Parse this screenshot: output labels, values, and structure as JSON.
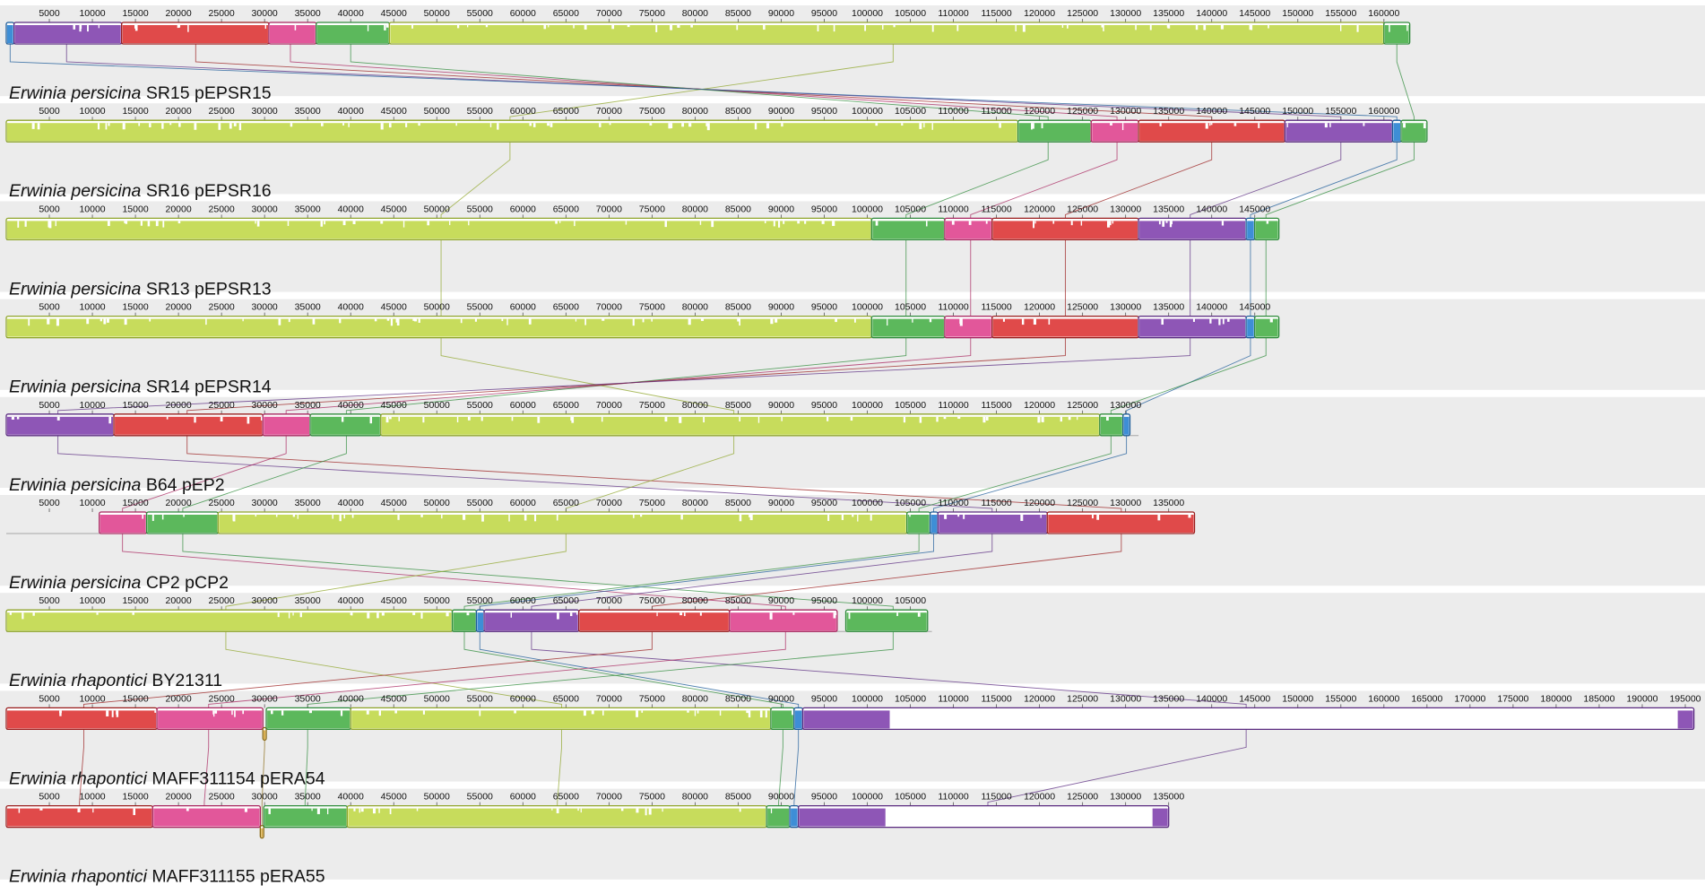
{
  "axis_max_bp": 195000,
  "tick_step_bp": 5000,
  "colors": {
    "track_bg": "#ececec",
    "axis_line": "#a6a6a6",
    "lime": "#c7dc5c",
    "lime_edge": "#8fa52a",
    "green": "#5cb85c",
    "green_edge": "#2e8b3a",
    "pink": "#e2579a",
    "pink_edge": "#a8235e",
    "red": "#e04a4a",
    "red_edge": "#9a1c1c",
    "purple": "#8e56b6",
    "purple_edge": "#5a2a80",
    "blue": "#3e8ed6",
    "blue_edge": "#1a5a98",
    "gold": "#d6a63a",
    "gold_edge": "#8a6a14"
  },
  "genomes": [
    {
      "name": "Erwinia persicina SR15 pEPSR15",
      "species": "Erwinia persicina",
      "strain": "SR15 pEPSR15",
      "length_bp": 163000,
      "blocks": [
        {
          "color": "blue",
          "start": 0,
          "end": 900
        },
        {
          "color": "purple",
          "start": 900,
          "end": 13400
        },
        {
          "color": "red",
          "start": 13400,
          "end": 30500
        },
        {
          "color": "pink",
          "start": 30500,
          "end": 36000
        },
        {
          "color": "green",
          "start": 36000,
          "end": 44500
        },
        {
          "color": "lime",
          "start": 44500,
          "end": 160000
        },
        {
          "color": "green",
          "start": 160000,
          "end": 163000
        }
      ]
    },
    {
      "name": "Erwinia persicina SR16 pEPSR16",
      "species": "Erwinia persicina",
      "strain": "SR16 pEPSR16",
      "length_bp": 163000,
      "blocks": [
        {
          "color": "lime",
          "start": 0,
          "end": 117500
        },
        {
          "color": "green",
          "start": 117500,
          "end": 126000
        },
        {
          "color": "pink",
          "start": 126000,
          "end": 131500
        },
        {
          "color": "red",
          "start": 131500,
          "end": 148500
        },
        {
          "color": "purple",
          "start": 148500,
          "end": 161000
        },
        {
          "color": "blue",
          "start": 161000,
          "end": 162000
        },
        {
          "color": "green",
          "start": 162000,
          "end": 165000
        }
      ]
    },
    {
      "name": "Erwinia persicina SR13 pEPSR13",
      "species": "Erwinia persicina",
      "strain": "SR13 pEPSR13",
      "length_bp": 147500,
      "blocks": [
        {
          "color": "lime",
          "start": 0,
          "end": 100500
        },
        {
          "color": "green",
          "start": 100500,
          "end": 109000
        },
        {
          "color": "pink",
          "start": 109000,
          "end": 114500
        },
        {
          "color": "red",
          "start": 114500,
          "end": 131500
        },
        {
          "color": "purple",
          "start": 131500,
          "end": 144000
        },
        {
          "color": "blue",
          "start": 144000,
          "end": 145000
        },
        {
          "color": "green",
          "start": 145000,
          "end": 147800
        }
      ]
    },
    {
      "name": "Erwinia persicina SR14 pEPSR14",
      "species": "Erwinia persicina",
      "strain": "SR14 pEPSR14",
      "length_bp": 147500,
      "blocks": [
        {
          "color": "lime",
          "start": 0,
          "end": 100500
        },
        {
          "color": "green",
          "start": 100500,
          "end": 109000
        },
        {
          "color": "pink",
          "start": 109000,
          "end": 114500
        },
        {
          "color": "red",
          "start": 114500,
          "end": 131500
        },
        {
          "color": "purple",
          "start": 131500,
          "end": 144000
        },
        {
          "color": "blue",
          "start": 144000,
          "end": 145000
        },
        {
          "color": "green",
          "start": 145000,
          "end": 147800
        }
      ]
    },
    {
      "name": "Erwinia persicina B64 pEP2",
      "species": "Erwinia persicina",
      "strain": "B64 pEP2",
      "length_bp": 131500,
      "blocks": [
        {
          "color": "purple",
          "start": 0,
          "end": 12500
        },
        {
          "color": "red",
          "start": 12500,
          "end": 29800
        },
        {
          "color": "pink",
          "start": 29800,
          "end": 35300
        },
        {
          "color": "green",
          "start": 35300,
          "end": 43500
        },
        {
          "color": "lime",
          "start": 43500,
          "end": 127000
        },
        {
          "color": "green",
          "start": 127000,
          "end": 129700
        },
        {
          "color": "blue",
          "start": 129700,
          "end": 130500
        }
      ]
    },
    {
      "name": "Erwinia persicina CP2 pCP2",
      "species": "Erwinia persicina",
      "strain": "CP2 pCP2",
      "length_bp": 138000,
      "blocks": [
        {
          "color": "pink",
          "start": 10800,
          "end": 16300
        },
        {
          "color": "green",
          "start": 16300,
          "end": 24600
        },
        {
          "color": "lime",
          "start": 24600,
          "end": 104600
        },
        {
          "color": "green",
          "start": 104600,
          "end": 107300
        },
        {
          "color": "blue",
          "start": 107300,
          "end": 108200
        },
        {
          "color": "purple",
          "start": 108200,
          "end": 120900
        },
        {
          "color": "red",
          "start": 120900,
          "end": 138000
        }
      ]
    },
    {
      "name": "Erwinia rhapontici BY21311",
      "species": "Erwinia rhapontici",
      "strain": "BY21311",
      "length_bp": 107500,
      "blocks": [
        {
          "color": "lime",
          "start": 0,
          "end": 51800
        },
        {
          "color": "green",
          "start": 51800,
          "end": 54600
        },
        {
          "color": "blue",
          "start": 54600,
          "end": 55500
        },
        {
          "color": "purple",
          "start": 55500,
          "end": 66500
        },
        {
          "color": "red",
          "start": 66500,
          "end": 84000
        },
        {
          "color": "pink",
          "start": 84000,
          "end": 96500
        },
        {
          "color": "green",
          "start": 97500,
          "end": 107000
        }
      ]
    },
    {
      "name": "Erwinia rhapontici MAFF311154 pERA54",
      "species": "Erwinia rhapontici",
      "strain": "MAFF311154 pERA54",
      "length_bp": 196000,
      "blocks": [
        {
          "color": "red",
          "start": 0,
          "end": 17500
        },
        {
          "color": "pink",
          "start": 17500,
          "end": 29800
        },
        {
          "color": "gold",
          "start": 29800,
          "end": 30200,
          "below": true
        },
        {
          "color": "green",
          "start": 30200,
          "end": 40000
        },
        {
          "color": "lime",
          "start": 40000,
          "end": 88800
        },
        {
          "color": "green",
          "start": 88800,
          "end": 91500
        },
        {
          "color": "blue",
          "start": 91500,
          "end": 92500
        },
        {
          "color": "purple",
          "start": 92500,
          "end": 196000,
          "sparse": true
        }
      ]
    },
    {
      "name": "Erwinia rhapontici MAFF311155 pERA55",
      "species": "Erwinia rhapontici",
      "strain": "MAFF311155 pERA55",
      "length_bp": 135000,
      "blocks": [
        {
          "color": "red",
          "start": 0,
          "end": 17000
        },
        {
          "color": "pink",
          "start": 17000,
          "end": 29500
        },
        {
          "color": "gold",
          "start": 29500,
          "end": 29900,
          "below": true
        },
        {
          "color": "green",
          "start": 29900,
          "end": 39600
        },
        {
          "color": "lime",
          "start": 39600,
          "end": 88300
        },
        {
          "color": "green",
          "start": 88300,
          "end": 91000
        },
        {
          "color": "blue",
          "start": 91000,
          "end": 92000
        },
        {
          "color": "purple",
          "start": 92000,
          "end": 135000,
          "sparse": true
        }
      ]
    }
  ],
  "connections": [
    {
      "from": 0,
      "color": "purple",
      "a": 7000,
      "b": 155000
    },
    {
      "from": 0,
      "color": "red",
      "a": 22000,
      "b": 140000
    },
    {
      "from": 0,
      "color": "pink",
      "a": 33000,
      "b": 129000
    },
    {
      "from": 0,
      "color": "green",
      "a": 40000,
      "b": 121000
    },
    {
      "from": 0,
      "color": "lime",
      "a": 103000,
      "b": 58500
    },
    {
      "from": 0,
      "color": "green",
      "a": 161500,
      "b": 163500
    },
    {
      "from": 0,
      "color": "blue",
      "a": 450,
      "b": 161500
    },
    {
      "from": 1,
      "color": "lime",
      "a": 58500,
      "b": 50500
    },
    {
      "from": 1,
      "color": "green",
      "a": 121000,
      "b": 104500
    },
    {
      "from": 1,
      "color": "pink",
      "a": 129000,
      "b": 112000
    },
    {
      "from": 1,
      "color": "red",
      "a": 140000,
      "b": 123000
    },
    {
      "from": 1,
      "color": "purple",
      "a": 155000,
      "b": 137500
    },
    {
      "from": 1,
      "color": "blue",
      "a": 161500,
      "b": 144500
    },
    {
      "from": 1,
      "color": "green",
      "a": 163500,
      "b": 146300
    },
    {
      "from": 2,
      "color": "lime",
      "a": 50500,
      "b": 50500
    },
    {
      "from": 2,
      "color": "green",
      "a": 104500,
      "b": 104500
    },
    {
      "from": 2,
      "color": "pink",
      "a": 112000,
      "b": 112000
    },
    {
      "from": 2,
      "color": "red",
      "a": 123000,
      "b": 123000
    },
    {
      "from": 2,
      "color": "purple",
      "a": 137500,
      "b": 137500
    },
    {
      "from": 2,
      "color": "blue",
      "a": 144500,
      "b": 144500
    },
    {
      "from": 2,
      "color": "green",
      "a": 146300,
      "b": 146300
    },
    {
      "from": 3,
      "color": "lime",
      "a": 50500,
      "b": 84500
    },
    {
      "from": 3,
      "color": "green",
      "a": 104500,
      "b": 39500
    },
    {
      "from": 3,
      "color": "pink",
      "a": 112000,
      "b": 32500
    },
    {
      "from": 3,
      "color": "red",
      "a": 123000,
      "b": 21000
    },
    {
      "from": 3,
      "color": "purple",
      "a": 137500,
      "b": 6000
    },
    {
      "from": 3,
      "color": "blue",
      "a": 144500,
      "b": 130100
    },
    {
      "from": 3,
      "color": "green",
      "a": 146300,
      "b": 128300
    },
    {
      "from": 4,
      "color": "purple",
      "a": 6000,
      "b": 114500
    },
    {
      "from": 4,
      "color": "red",
      "a": 21000,
      "b": 129500
    },
    {
      "from": 4,
      "color": "pink",
      "a": 32500,
      "b": 13500
    },
    {
      "from": 4,
      "color": "green",
      "a": 39500,
      "b": 20500
    },
    {
      "from": 4,
      "color": "lime",
      "a": 84500,
      "b": 65000
    },
    {
      "from": 4,
      "color": "green",
      "a": 128300,
      "b": 106000
    },
    {
      "from": 4,
      "color": "blue",
      "a": 130100,
      "b": 107700
    },
    {
      "from": 5,
      "color": "pink",
      "a": 13500,
      "b": 90500
    },
    {
      "from": 5,
      "color": "green",
      "a": 20500,
      "b": 103000
    },
    {
      "from": 5,
      "color": "lime",
      "a": 65000,
      "b": 25500
    },
    {
      "from": 5,
      "color": "green",
      "a": 106000,
      "b": 53200
    },
    {
      "from": 5,
      "color": "blue",
      "a": 107700,
      "b": 55000
    },
    {
      "from": 5,
      "color": "purple",
      "a": 114500,
      "b": 61000
    },
    {
      "from": 5,
      "color": "red",
      "a": 129500,
      "b": 75000
    },
    {
      "from": 6,
      "color": "lime",
      "a": 25500,
      "b": 64500
    },
    {
      "from": 6,
      "color": "green",
      "a": 53200,
      "b": 90200
    },
    {
      "from": 6,
      "color": "blue",
      "a": 55000,
      "b": 92000
    },
    {
      "from": 6,
      "color": "purple",
      "a": 61000,
      "b": 144000
    },
    {
      "from": 6,
      "color": "red",
      "a": 75000,
      "b": 9000
    },
    {
      "from": 6,
      "color": "pink",
      "a": 90500,
      "b": 23500
    },
    {
      "from": 6,
      "color": "green",
      "a": 103000,
      "b": 35000
    },
    {
      "from": 7,
      "color": "red",
      "a": 9000,
      "b": 8500
    },
    {
      "from": 7,
      "color": "pink",
      "a": 23500,
      "b": 23000
    },
    {
      "from": 7,
      "color": "gold",
      "a": 30000,
      "b": 29700
    },
    {
      "from": 7,
      "color": "green",
      "a": 35000,
      "b": 34700
    },
    {
      "from": 7,
      "color": "lime",
      "a": 64500,
      "b": 64000
    },
    {
      "from": 7,
      "color": "green",
      "a": 90200,
      "b": 89700
    },
    {
      "from": 7,
      "color": "blue",
      "a": 92000,
      "b": 91500
    },
    {
      "from": 7,
      "color": "purple",
      "a": 144000,
      "b": 114000
    }
  ]
}
